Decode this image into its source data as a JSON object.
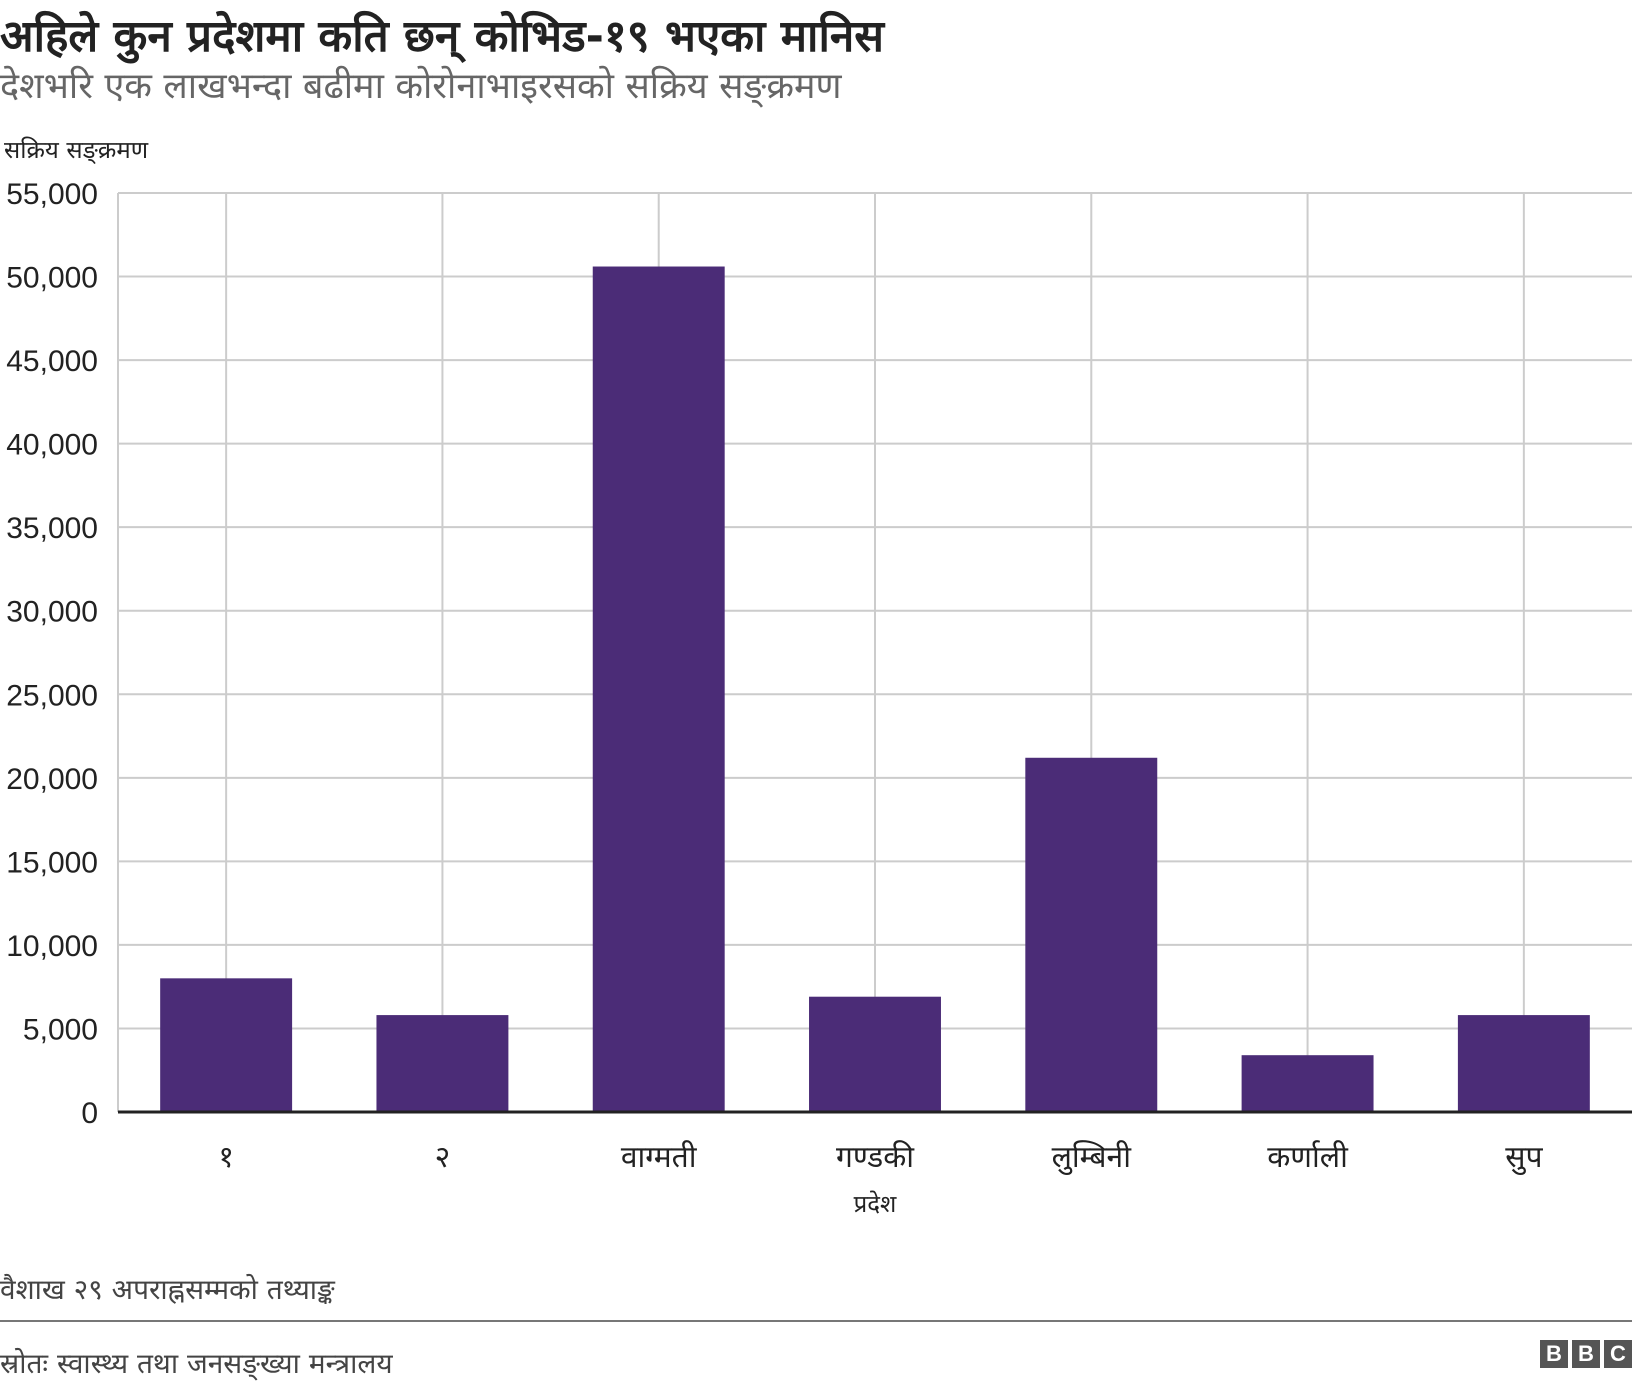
{
  "header": {
    "title": "अहिले कुन प्रदेशमा कति छन् कोभिड-१९ भएका मानिस",
    "subtitle": "देशभरि एक लाखभन्दा बढीमा कोरोनाभाइरसको सक्रिय सङ्क्रमण"
  },
  "chart_data": {
    "type": "bar",
    "ylabel": "सक्रिय सङ्क्रमण",
    "xlabel": "प्रदेश",
    "categories": [
      "१",
      "२",
      "वाग्मती",
      "गण्डकी",
      "लुम्बिनी",
      "कर्णाली",
      "सुप"
    ],
    "values": [
      8000,
      5800,
      50600,
      6900,
      21200,
      3400,
      5800
    ],
    "ylim": [
      0,
      55000
    ],
    "yticks": [
      0,
      5000,
      10000,
      15000,
      20000,
      25000,
      30000,
      35000,
      40000,
      45000,
      50000,
      55000
    ],
    "ytick_labels": [
      "0",
      "5,000",
      "10,000",
      "15,000",
      "20,000",
      "25,000",
      "30,000",
      "35,000",
      "40,000",
      "45,000",
      "50,000",
      "55,000"
    ],
    "grid": true,
    "bar_color": "#4b2c77",
    "grid_color": "#cccccc",
    "axis_color": "#222222"
  },
  "footer": {
    "note": "वैशाख २९ अपराह्नसम्मको तथ्याङ्क",
    "source": "स्रोतः स्वास्थ्य तथा जनसङ्ख्या मन्त्रालय",
    "logo_letters": [
      "B",
      "B",
      "C"
    ]
  }
}
